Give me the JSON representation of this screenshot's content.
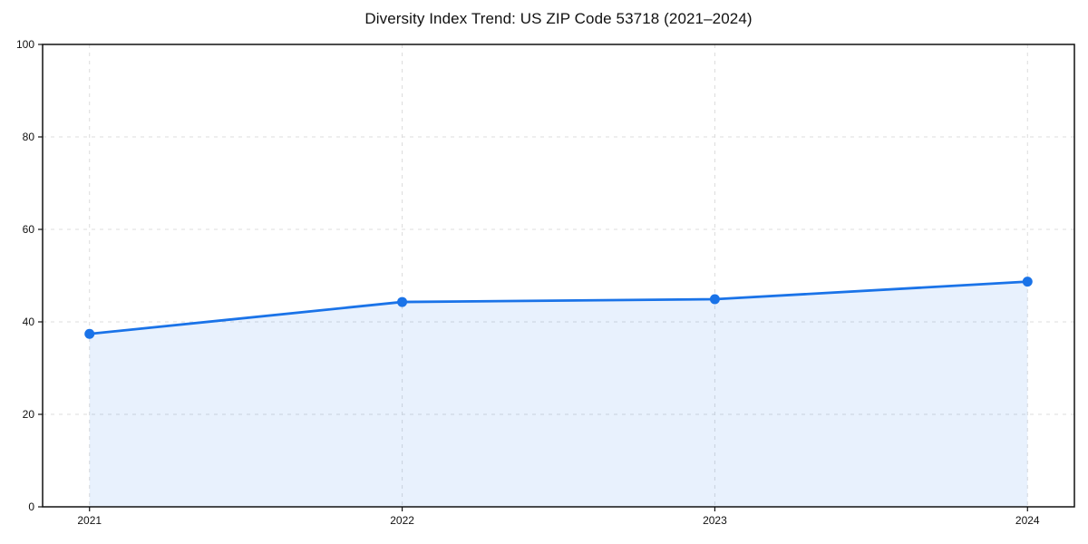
{
  "chart_data": {
    "type": "area",
    "title": "Diversity Index Trend: US ZIP Code 53718 (2021–2024)",
    "x": [
      2021,
      2022,
      2023,
      2024
    ],
    "x_tick_labels": [
      "2021",
      "2022",
      "2023",
      "2024"
    ],
    "series": [
      {
        "name": "Diversity Index",
        "values": [
          37.4,
          44.3,
          44.9,
          48.7
        ]
      }
    ],
    "xlabel": "",
    "ylabel": "",
    "ylim": [
      0,
      100
    ],
    "yticks": [
      0,
      20,
      40,
      60,
      80,
      100
    ],
    "grid": true,
    "grid_style": "dashed",
    "legend_position": "none",
    "marker": "circle",
    "colors": {
      "line": "#1a73e8",
      "fill": "rgba(26,115,232,0.10)",
      "grid": "#dcdcdc",
      "axis": "#111111",
      "text": "#111111",
      "background": "#ffffff"
    }
  }
}
